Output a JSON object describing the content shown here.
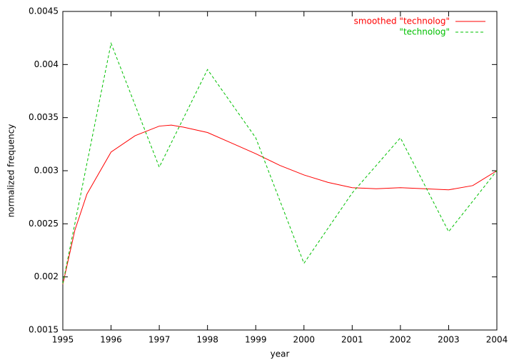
{
  "chart_data": {
    "type": "line",
    "x_label": "year",
    "y_label": "normalized frequency",
    "xlim": [
      1995,
      2004
    ],
    "xticks": [
      1995,
      1996,
      1997,
      1998,
      1999,
      2000,
      2001,
      2002,
      2003,
      2004
    ],
    "ylim": [
      0.0015,
      0.0045
    ],
    "yticks": [
      0.0015,
      0.002,
      0.0025,
      0.003,
      0.0035,
      0.004,
      0.0045
    ],
    "legend": "top-right",
    "series": [
      {
        "name": "smoothed \"technolog\"",
        "color": "#ff0000",
        "dashed": false,
        "x": [
          1995,
          1995.25,
          1995.5,
          1996,
          1996.5,
          1997,
          1997.25,
          1997.5,
          1998,
          1998.5,
          1999,
          1999.5,
          2000,
          2000.5,
          2001,
          2001.5,
          2002,
          2002.5,
          2003,
          2003.5,
          2004
        ],
        "values": [
          0.00193,
          0.00244,
          0.00278,
          0.003176,
          0.00333,
          0.00342,
          0.00343,
          0.00341,
          0.00336,
          0.00326,
          0.00316,
          0.00305,
          0.00296,
          0.00289,
          0.00284,
          0.00283,
          0.00284,
          0.00283,
          0.00282,
          0.00286,
          0.003
        ]
      },
      {
        "name": "\"technolog\"",
        "color": "#00c000",
        "dashed": true,
        "x": [
          1995,
          1996,
          1997,
          1998,
          1999,
          2000,
          2001,
          2002,
          2003,
          2004
        ],
        "values": [
          0.001937,
          0.0042,
          0.003034,
          0.003953,
          0.00331,
          0.002128,
          0.00279,
          0.00331,
          0.002426,
          0.003
        ]
      }
    ]
  }
}
